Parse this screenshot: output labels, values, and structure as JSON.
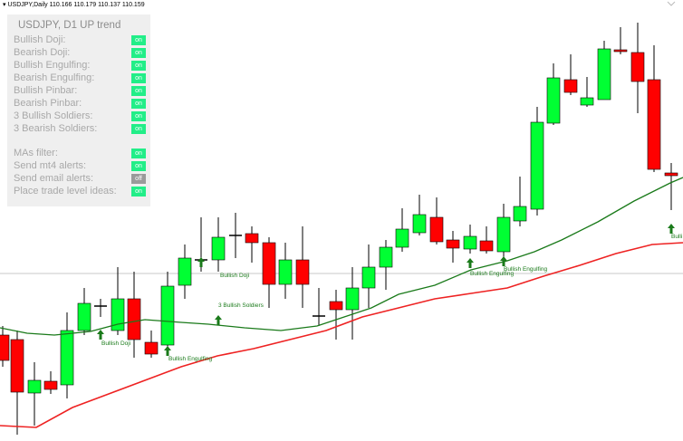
{
  "header": {
    "symbol": "USDJPY,Daily",
    "prices": "110.166 110.179 110.137 110.159"
  },
  "panel": {
    "title": "USDJPY, D1 UP trend",
    "rows": [
      {
        "label": "Bullish Doji:",
        "status": "on"
      },
      {
        "label": "Bearish Doji:",
        "status": "on"
      },
      {
        "label": "Bullish Engulfing:",
        "status": "on"
      },
      {
        "label": "Bearish Engulfing:",
        "status": "on"
      },
      {
        "label": "Bullish Pinbar:",
        "status": "on"
      },
      {
        "label": "Bearish Pinbar:",
        "status": "on"
      },
      {
        "label": "3 Bullish Soldiers:",
        "status": "on"
      },
      {
        "label": "3 Bearish Soldiers:",
        "status": "on"
      },
      {
        "label": "MAs filter:",
        "status": "on"
      },
      {
        "label": "Send mt4 alerts:",
        "status": "on"
      },
      {
        "label": "Send email alerts:",
        "status": "off"
      },
      {
        "label": "Place trade level ideas:",
        "status": "on"
      }
    ]
  },
  "annotations": [
    "Bullish Doji",
    "Bullish Engulfing",
    "Bullish Doji",
    "3 Bullish Soldiers",
    "Bullish Engulfing",
    "Bullish Engulfing",
    "Bulli"
  ]
}
